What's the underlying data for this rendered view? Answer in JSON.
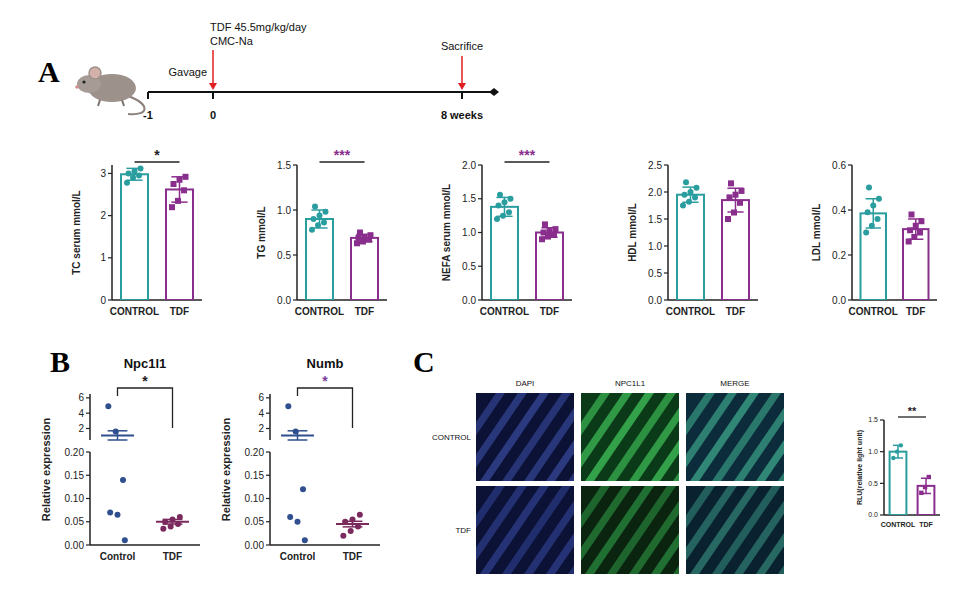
{
  "panel_letters": [
    "A",
    "B",
    "C"
  ],
  "timeline": {
    "treatment": "TDF 45.5mg/kg/day",
    "vehicle": "CMC-Na",
    "method": "Gavage",
    "endpoint": "Sacrifice",
    "ticks": [
      "-1",
      "0",
      "8 weeks"
    ]
  },
  "images": {
    "columns": [
      "DAPI",
      "NPC1L1",
      "MERGE"
    ],
    "rows": [
      "CONTROL",
      "TDF"
    ]
  },
  "chart_data": [
    {
      "type": "bar",
      "ylabel": "TC serum mmol/L",
      "categories": [
        "CONTROL",
        "TDF"
      ],
      "values": [
        2.98,
        2.62
      ],
      "errors": [
        0.14,
        0.3
      ],
      "points": [
        [
          2.78,
          2.9,
          2.95,
          3.0,
          3.05,
          3.12
        ],
        [
          2.2,
          2.35,
          2.6,
          2.75,
          2.85,
          2.92
        ]
      ],
      "colors": [
        "#2a9d9f",
        "#8a2e8e"
      ],
      "ylim": [
        0,
        3.2
      ],
      "yticks": [
        0,
        1,
        2,
        3
      ],
      "annotations": [
        {
          "text": "*",
          "color": "#222222"
        }
      ]
    },
    {
      "type": "bar",
      "ylabel": "TG mmol/L",
      "categories": [
        "CONTROL",
        "TDF"
      ],
      "values": [
        0.9,
        0.69
      ],
      "errors": [
        0.1,
        0.04
      ],
      "points": [
        [
          0.78,
          0.83,
          0.86,
          0.9,
          0.94,
          0.98,
          1.04
        ],
        [
          0.63,
          0.65,
          0.67,
          0.69,
          0.7,
          0.72,
          0.75
        ]
      ],
      "colors": [
        "#2a9d9f",
        "#8a2e8e"
      ],
      "ylim": [
        0,
        1.5
      ],
      "yticks": [
        {
          "value": 0,
          "label": "0.0"
        },
        {
          "value": 0.5,
          "label": "0.5"
        },
        {
          "value": 1,
          "label": "1.0"
        },
        {
          "value": 1.5,
          "label": "1.5"
        }
      ],
      "annotations": [
        {
          "text": "***",
          "color": "#8a2e8e"
        }
      ]
    },
    {
      "type": "bar",
      "ylabel": "NEFA serum mmol/L",
      "categories": [
        "CONTROL",
        "TDF"
      ],
      "values": [
        1.38,
        1.0
      ],
      "errors": [
        0.14,
        0.07
      ],
      "points": [
        [
          1.2,
          1.25,
          1.3,
          1.4,
          1.45,
          1.5,
          1.56
        ],
        [
          0.9,
          0.94,
          0.97,
          1.0,
          1.02,
          1.05,
          1.12
        ]
      ],
      "colors": [
        "#2a9d9f",
        "#8a2e8e"
      ],
      "ylim": [
        0,
        2.0
      ],
      "yticks": [
        {
          "value": 0,
          "label": "0.0"
        },
        {
          "value": 0.5,
          "label": "0.5"
        },
        {
          "value": 1,
          "label": "1.0"
        },
        {
          "value": 1.5,
          "label": "1.5"
        },
        {
          "value": 2,
          "label": "2.0"
        }
      ],
      "annotations": [
        {
          "text": "***",
          "color": "#8a2e8e"
        }
      ]
    },
    {
      "type": "bar",
      "ylabel": "HDL mmol/L",
      "categories": [
        "CONTROL",
        "TDF"
      ],
      "values": [
        1.95,
        1.85
      ],
      "errors": [
        0.14,
        0.22
      ],
      "points": [
        [
          1.75,
          1.82,
          1.9,
          1.95,
          2.0,
          2.08,
          2.18
        ],
        [
          1.5,
          1.62,
          1.8,
          1.9,
          1.95,
          2.02,
          2.16
        ]
      ],
      "colors": [
        "#2a9d9f",
        "#8a2e8e"
      ],
      "ylim": [
        0,
        2.5
      ],
      "yticks": [
        {
          "value": 0,
          "label": "0.0"
        },
        {
          "value": 0.5,
          "label": "0.5"
        },
        {
          "value": 1,
          "label": "1.0"
        },
        {
          "value": 1.5,
          "label": "1.5"
        },
        {
          "value": 2,
          "label": "2.0"
        },
        {
          "value": 2.5,
          "label": "2.5"
        }
      ]
    },
    {
      "type": "bar",
      "ylabel": "LDL mmol/L",
      "categories": [
        "CONTROL",
        "TDF"
      ],
      "values": [
        0.385,
        0.315
      ],
      "errors": [
        0.065,
        0.045
      ],
      "points": [
        [
          0.3,
          0.33,
          0.36,
          0.39,
          0.42,
          0.45,
          0.5
        ],
        [
          0.26,
          0.28,
          0.3,
          0.31,
          0.33,
          0.35,
          0.38
        ]
      ],
      "colors": [
        "#2a9d9f",
        "#8a2e8e"
      ],
      "ylim": [
        0,
        0.6
      ],
      "yticks": [
        {
          "value": 0,
          "label": "0.0"
        },
        {
          "value": 0.2,
          "label": "0.2"
        },
        {
          "value": 0.4,
          "label": "0.4"
        },
        {
          "value": 0.6,
          "label": "0.6"
        }
      ]
    },
    {
      "type": "dot",
      "title": "Npc1l1",
      "ylabel": "Relative expression",
      "categories": [
        "Control",
        "TDF"
      ],
      "values": [
        1.1,
        0.05
      ],
      "errors": [
        0.6,
        0.005
      ],
      "points": [
        [
          4.9,
          1.6,
          0.14,
          0.07,
          0.065,
          0.01
        ],
        [
          0.035,
          0.04,
          0.045,
          0.05,
          0.055,
          0.06
        ]
      ],
      "colors": [
        "#2f4f8f",
        "#7b2a5e"
      ],
      "ylim": [
        0,
        6.5
      ],
      "axis_break": [
        0.2,
        0.5
      ],
      "yticks": [
        {
          "value": 0,
          "label": "0.00"
        },
        {
          "value": 0.05,
          "label": "0.05"
        },
        {
          "value": 0.1,
          "label": "0.10"
        },
        {
          "value": 0.15,
          "label": "0.15"
        },
        {
          "value": 0.2,
          "label": "0.20"
        },
        2,
        4,
        6
      ],
      "annotations": [
        {
          "text": "*",
          "color": "#222222"
        }
      ]
    },
    {
      "type": "dot",
      "title": "Numb",
      "ylabel": "Relative expression",
      "categories": [
        "Control",
        "TDF"
      ],
      "values": [
        1.1,
        0.045
      ],
      "errors": [
        0.6,
        0.006
      ],
      "points": [
        [
          4.9,
          1.6,
          0.12,
          0.06,
          0.05,
          0.01
        ],
        [
          0.02,
          0.03,
          0.04,
          0.05,
          0.055,
          0.065
        ]
      ],
      "colors": [
        "#2f4f8f",
        "#7b2a5e"
      ],
      "ylim": [
        0,
        6.5
      ],
      "axis_break": [
        0.2,
        0.5
      ],
      "yticks": [
        {
          "value": 0,
          "label": "0.00"
        },
        {
          "value": 0.05,
          "label": "0.05"
        },
        {
          "value": 0.1,
          "label": "0.10"
        },
        {
          "value": 0.15,
          "label": "0.15"
        },
        {
          "value": 0.2,
          "label": "0.20"
        },
        2,
        4,
        6
      ],
      "annotations": [
        {
          "text": "*",
          "color": "#7b3f9e"
        }
      ]
    },
    {
      "type": "bar",
      "ylabel": "RLU(relative light unit)",
      "categories": [
        "CONTROL",
        "TDF"
      ],
      "values": [
        1.0,
        0.46
      ],
      "errors": [
        0.1,
        0.12
      ],
      "points": [
        [
          0.9,
          1.0,
          1.1
        ],
        [
          0.35,
          0.44,
          0.6
        ]
      ],
      "colors": [
        "#2a9d9f",
        "#8a2e8e"
      ],
      "ylim": [
        0,
        1.5
      ],
      "yticks": [
        {
          "value": 0,
          "label": "0.0"
        },
        {
          "value": 0.5,
          "label": "0.5"
        },
        {
          "value": 1,
          "label": "1.0"
        },
        {
          "value": 1.5,
          "label": "1.5"
        }
      ],
      "annotations": [
        {
          "text": "**",
          "color": "#222222"
        }
      ]
    }
  ]
}
